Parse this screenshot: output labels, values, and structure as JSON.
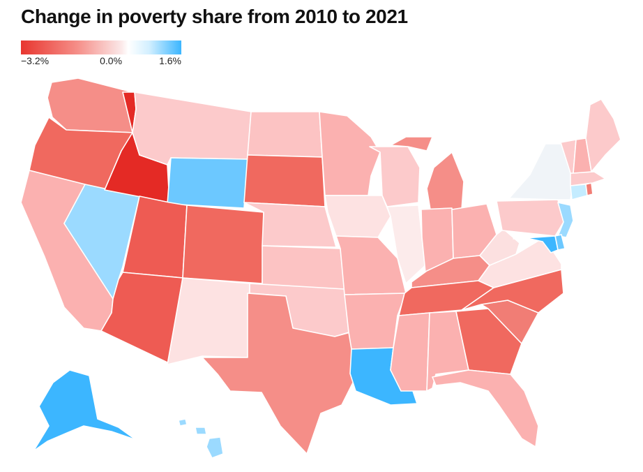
{
  "title": "Change in poverty share from 2010 to 2021",
  "legend": {
    "min_label": "−3.2%",
    "mid_label": "0.0%",
    "max_label": "1.6%",
    "min_value": -3.2,
    "mid_value": 0.0,
    "max_value": 1.6,
    "min_color": "#e8362f",
    "mid_color": "#ffffff",
    "max_color": "#3cb6ff"
  },
  "fills": {
    "WA": "#f58e88",
    "OR": "#f0695f",
    "ID": "#e42a25",
    "MT": "#fccacb",
    "WY": "#6cc8ff",
    "ND": "#fcc3c3",
    "SD": "#f0695f",
    "NE": "#fccacb",
    "KS": "#fcc3c3",
    "OK": "#fccacb",
    "TX": "#f58e88",
    "NM": "#fde2e2",
    "CO": "#f0695f",
    "UT": "#ee5b53",
    "AZ": "#ee5b53",
    "NV": "#9bdaff",
    "CA": "#fbb1b0",
    "MN": "#fbb1b0",
    "IA": "#fde2e2",
    "MO": "#fbb1b0",
    "AR": "#fbb1b0",
    "LA": "#3cb6ff",
    "WI": "#fccacb",
    "IL": "#fcebeb",
    "MI": "#f58e88",
    "IN": "#fbb1b0",
    "OH": "#fbb1b0",
    "KY": "#f58e88",
    "TN": "#f0695f",
    "MS": "#fbb1b0",
    "AL": "#fbb1b0",
    "GA": "#f0695f",
    "FL": "#fbb1b0",
    "SC": "#f17d75",
    "NC": "#f0695f",
    "VA": "#fde2e2",
    "WV": "#fce0e0",
    "PA": "#fccacb",
    "NY": "#f0f4f8",
    "MD": "#3cb6ff",
    "DE": "#6cc8ff",
    "NJ": "#9bdaff",
    "CT": "#c4ecff",
    "RI": "#f17d75",
    "MA": "#fccacb",
    "VT": "#fccacb",
    "NH": "#fbb1b0",
    "ME": "#fccacb",
    "AK": "#3cb6ff",
    "HI": "#9bdaff"
  }
}
